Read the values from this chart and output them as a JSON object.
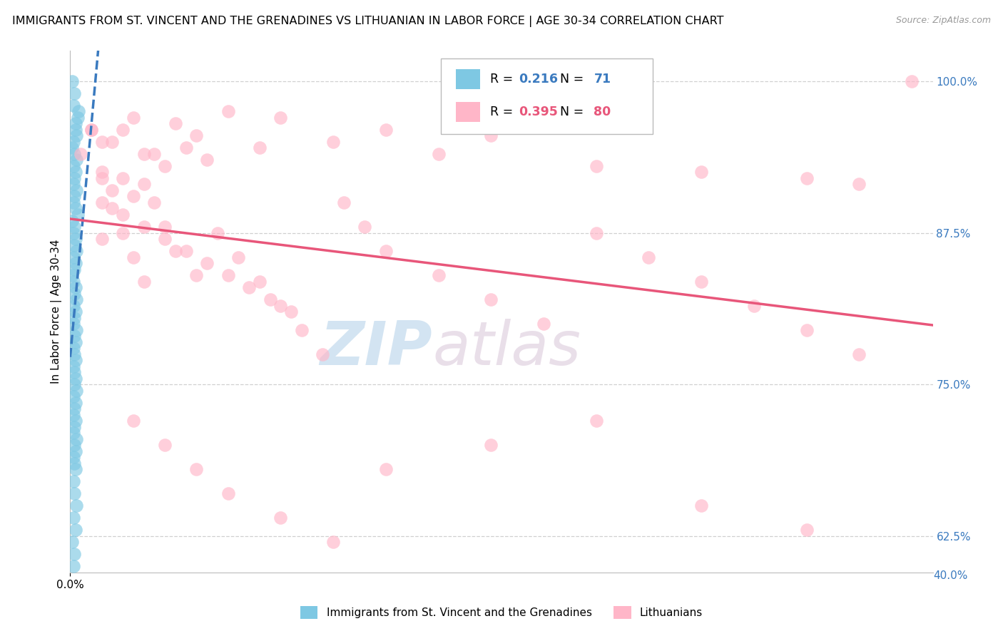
{
  "title": "IMMIGRANTS FROM ST. VINCENT AND THE GRENADINES VS LITHUANIAN IN LABOR FORCE | AGE 30-34 CORRELATION CHART",
  "source": "Source: ZipAtlas.com",
  "ylabel": "In Labor Force | Age 30-34",
  "blue_label": "Immigrants from St. Vincent and the Grenadines",
  "pink_label": "Lithuanians",
  "blue_R": 0.216,
  "blue_N": 71,
  "pink_R": 0.395,
  "pink_N": 80,
  "blue_color": "#7ec8e3",
  "pink_color": "#ffb6c8",
  "blue_line_color": "#3a7abf",
  "pink_line_color": "#e8567a",
  "right_tick_color": "#3a7abf",
  "xlim": [
    0.0,
    0.082
  ],
  "ylim": [
    0.595,
    1.025
  ],
  "right_yticks": [
    1.0,
    0.875,
    0.75,
    0.625
  ],
  "right_yticklabels": [
    "100.0%",
    "87.5%",
    "75.0%",
    "62.5%"
  ],
  "bottom_right_label": "40.0%",
  "background_color": "#ffffff",
  "watermark_zip": "ZIP",
  "watermark_atlas": "atlas",
  "watermark_zip_color": "#b0cfe8",
  "watermark_atlas_color": "#d0b8d0",
  "grid_color": "#d0d0d0",
  "blue_x": [
    0.0002,
    0.0003,
    0.0005,
    0.0007,
    0.0004,
    0.0006,
    0.0008,
    0.0003,
    0.0005,
    0.0002,
    0.0004,
    0.0006,
    0.0003,
    0.0005,
    0.0004,
    0.0003,
    0.0006,
    0.0004,
    0.0003,
    0.0005,
    0.0007,
    0.0002,
    0.0004,
    0.0003,
    0.0005,
    0.0004,
    0.0006,
    0.0003,
    0.0005,
    0.0004,
    0.0002,
    0.0003,
    0.0005,
    0.0004,
    0.0006,
    0.0003,
    0.0005,
    0.0004,
    0.0003,
    0.0006,
    0.0004,
    0.0005,
    0.0003,
    0.0004,
    0.0005,
    0.0003,
    0.0004,
    0.0005,
    0.0004,
    0.0006,
    0.0003,
    0.0005,
    0.0004,
    0.0003,
    0.0005,
    0.0004,
    0.0003,
    0.0006,
    0.0004,
    0.0005,
    0.0003,
    0.0004,
    0.0005,
    0.0003,
    0.0004,
    0.0006,
    0.0003,
    0.0005,
    0.0002,
    0.0004,
    0.0003
  ],
  "blue_y": [
    1.0,
    0.98,
    0.96,
    0.97,
    0.99,
    0.955,
    0.975,
    0.95,
    0.965,
    0.945,
    0.94,
    0.935,
    0.93,
    0.925,
    0.92,
    0.915,
    0.91,
    0.905,
    0.9,
    0.895,
    0.89,
    0.885,
    0.88,
    0.875,
    0.87,
    0.865,
    0.86,
    0.855,
    0.85,
    0.845,
    0.84,
    0.835,
    0.83,
    0.825,
    0.82,
    0.815,
    0.81,
    0.805,
    0.8,
    0.795,
    0.79,
    0.785,
    0.78,
    0.775,
    0.77,
    0.765,
    0.76,
    0.755,
    0.75,
    0.745,
    0.74,
    0.735,
    0.73,
    0.725,
    0.72,
    0.715,
    0.71,
    0.705,
    0.7,
    0.695,
    0.69,
    0.685,
    0.68,
    0.67,
    0.66,
    0.65,
    0.64,
    0.63,
    0.62,
    0.61,
    0.6
  ],
  "pink_x": [
    0.002,
    0.004,
    0.006,
    0.008,
    0.01,
    0.012,
    0.015,
    0.018,
    0.003,
    0.005,
    0.007,
    0.009,
    0.011,
    0.013,
    0.003,
    0.005,
    0.007,
    0.002,
    0.004,
    0.006,
    0.02,
    0.025,
    0.03,
    0.035,
    0.04,
    0.05,
    0.06,
    0.07,
    0.075,
    0.08,
    0.003,
    0.005,
    0.007,
    0.009,
    0.011,
    0.013,
    0.015,
    0.017,
    0.019,
    0.021,
    0.003,
    0.004,
    0.005,
    0.006,
    0.007,
    0.008,
    0.009,
    0.01,
    0.012,
    0.014,
    0.016,
    0.018,
    0.02,
    0.022,
    0.024,
    0.026,
    0.028,
    0.03,
    0.035,
    0.04,
    0.045,
    0.05,
    0.055,
    0.06,
    0.065,
    0.07,
    0.075,
    0.003,
    0.006,
    0.009,
    0.012,
    0.015,
    0.02,
    0.025,
    0.03,
    0.04,
    0.05,
    0.06,
    0.07,
    0.001
  ],
  "pink_y": [
    0.96,
    0.95,
    0.97,
    0.94,
    0.965,
    0.955,
    0.975,
    0.945,
    0.95,
    0.96,
    0.94,
    0.93,
    0.945,
    0.935,
    0.925,
    0.92,
    0.915,
    0.96,
    0.91,
    0.905,
    0.97,
    0.95,
    0.96,
    0.94,
    0.955,
    0.93,
    0.925,
    0.92,
    0.915,
    1.0,
    0.9,
    0.89,
    0.88,
    0.87,
    0.86,
    0.85,
    0.84,
    0.83,
    0.82,
    0.81,
    0.92,
    0.895,
    0.875,
    0.855,
    0.835,
    0.9,
    0.88,
    0.86,
    0.84,
    0.875,
    0.855,
    0.835,
    0.815,
    0.795,
    0.775,
    0.9,
    0.88,
    0.86,
    0.84,
    0.82,
    0.8,
    0.875,
    0.855,
    0.835,
    0.815,
    0.795,
    0.775,
    0.87,
    0.72,
    0.7,
    0.68,
    0.66,
    0.64,
    0.62,
    0.68,
    0.7,
    0.72,
    0.65,
    0.63,
    0.94
  ]
}
